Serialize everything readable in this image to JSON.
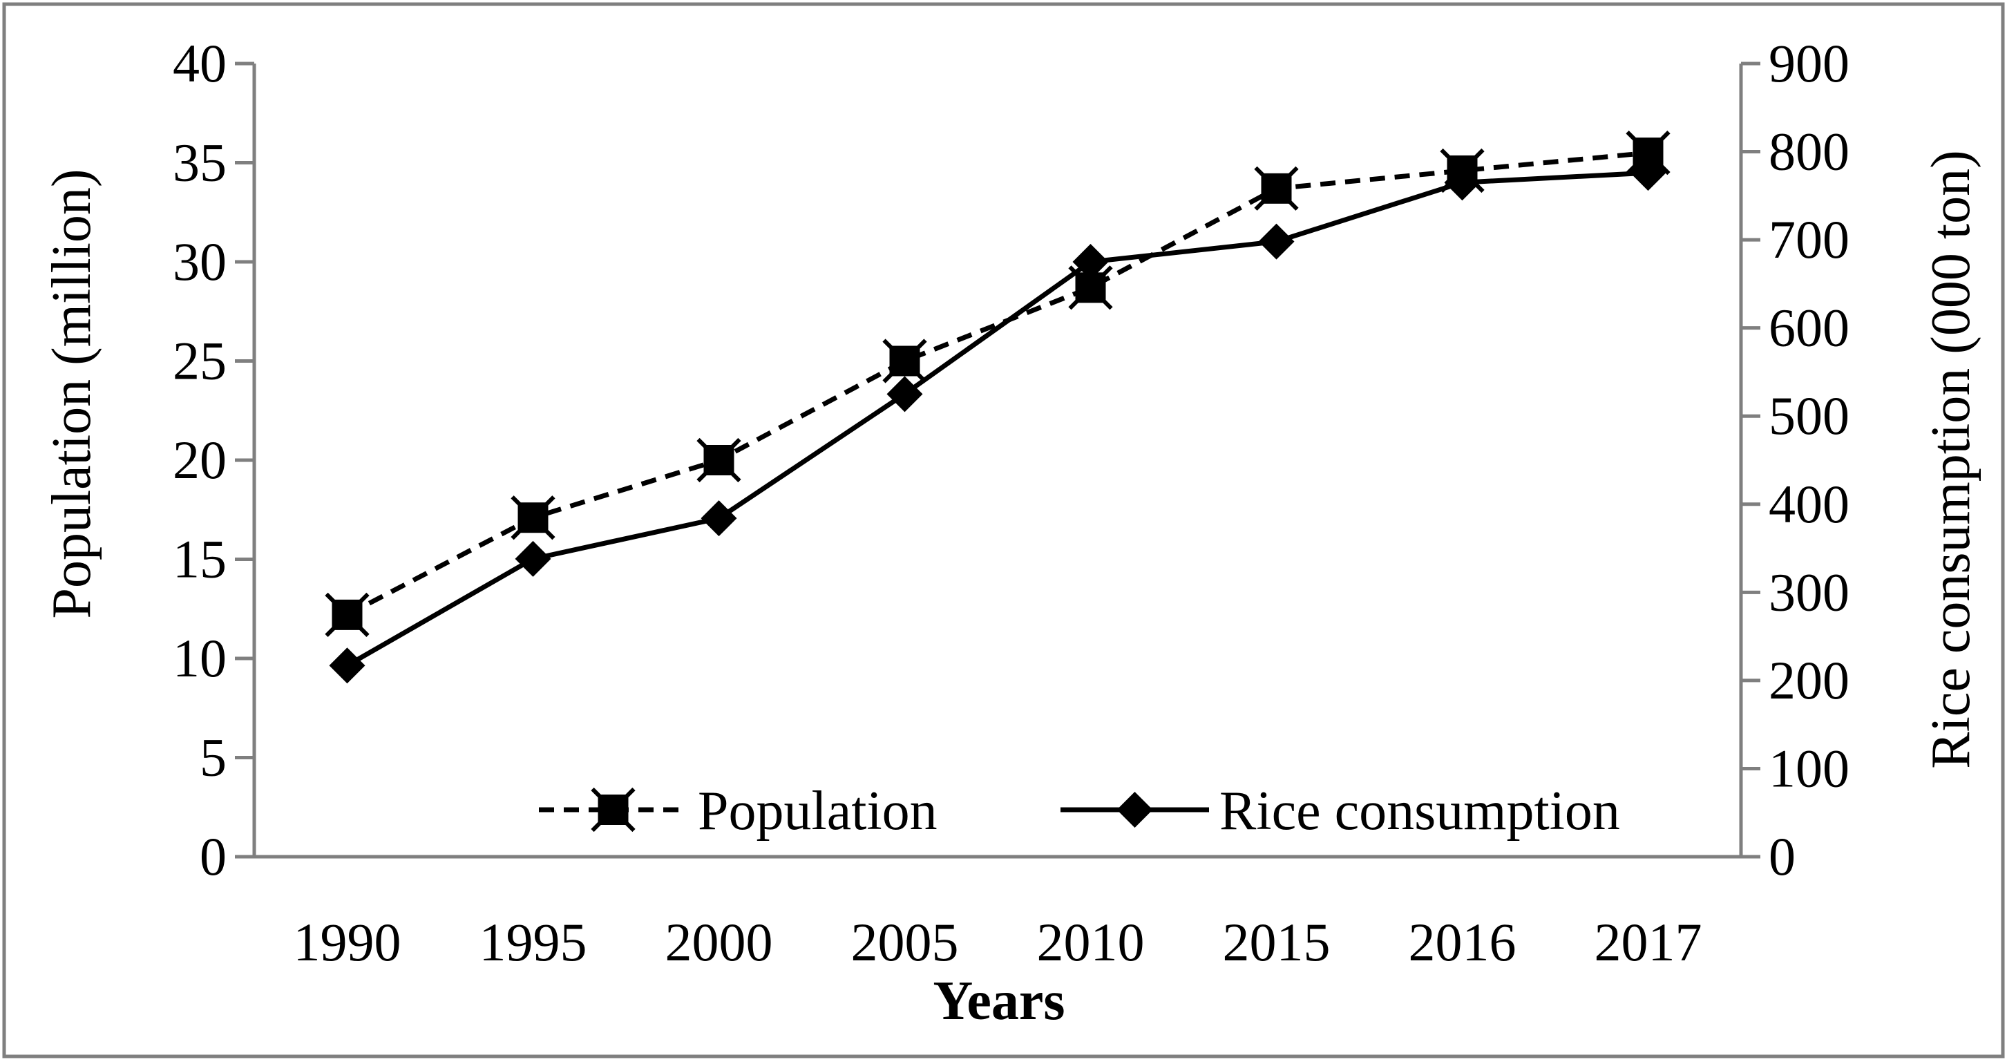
{
  "chart_data": {
    "type": "line",
    "categories": [
      "1990",
      "1995",
      "2000",
      "2005",
      "2010",
      "2015",
      "2016",
      "2017"
    ],
    "series": [
      {
        "name": "Population",
        "axis": "left",
        "line_style": "dashed",
        "marker": "square",
        "values": [
          12.2,
          17.1,
          20.0,
          25.0,
          28.7,
          33.7,
          34.6,
          35.5
        ]
      },
      {
        "name": "Rice consumption",
        "axis": "right",
        "line_style": "solid",
        "marker": "diamond",
        "values": [
          217,
          338,
          384,
          525,
          675,
          698,
          765,
          776
        ]
      }
    ],
    "xlabel": "Years",
    "ylabel": "Population (million)",
    "y2label": "Rice consumption (000 ton)",
    "ylim": [
      0,
      40
    ],
    "y2lim": [
      0,
      900
    ],
    "yticks": [
      "0",
      "5",
      "10",
      "15",
      "20",
      "25",
      "30",
      "35",
      "40"
    ],
    "y2ticks": [
      "0",
      "100",
      "200",
      "300",
      "400",
      "500",
      "600",
      "700",
      "800",
      "900"
    ],
    "legend_position": "bottom-right inside plot",
    "grid": false,
    "colors": {
      "line": "#000000",
      "axis": "#7f7f7f",
      "frame": "#7f7f7f"
    }
  }
}
